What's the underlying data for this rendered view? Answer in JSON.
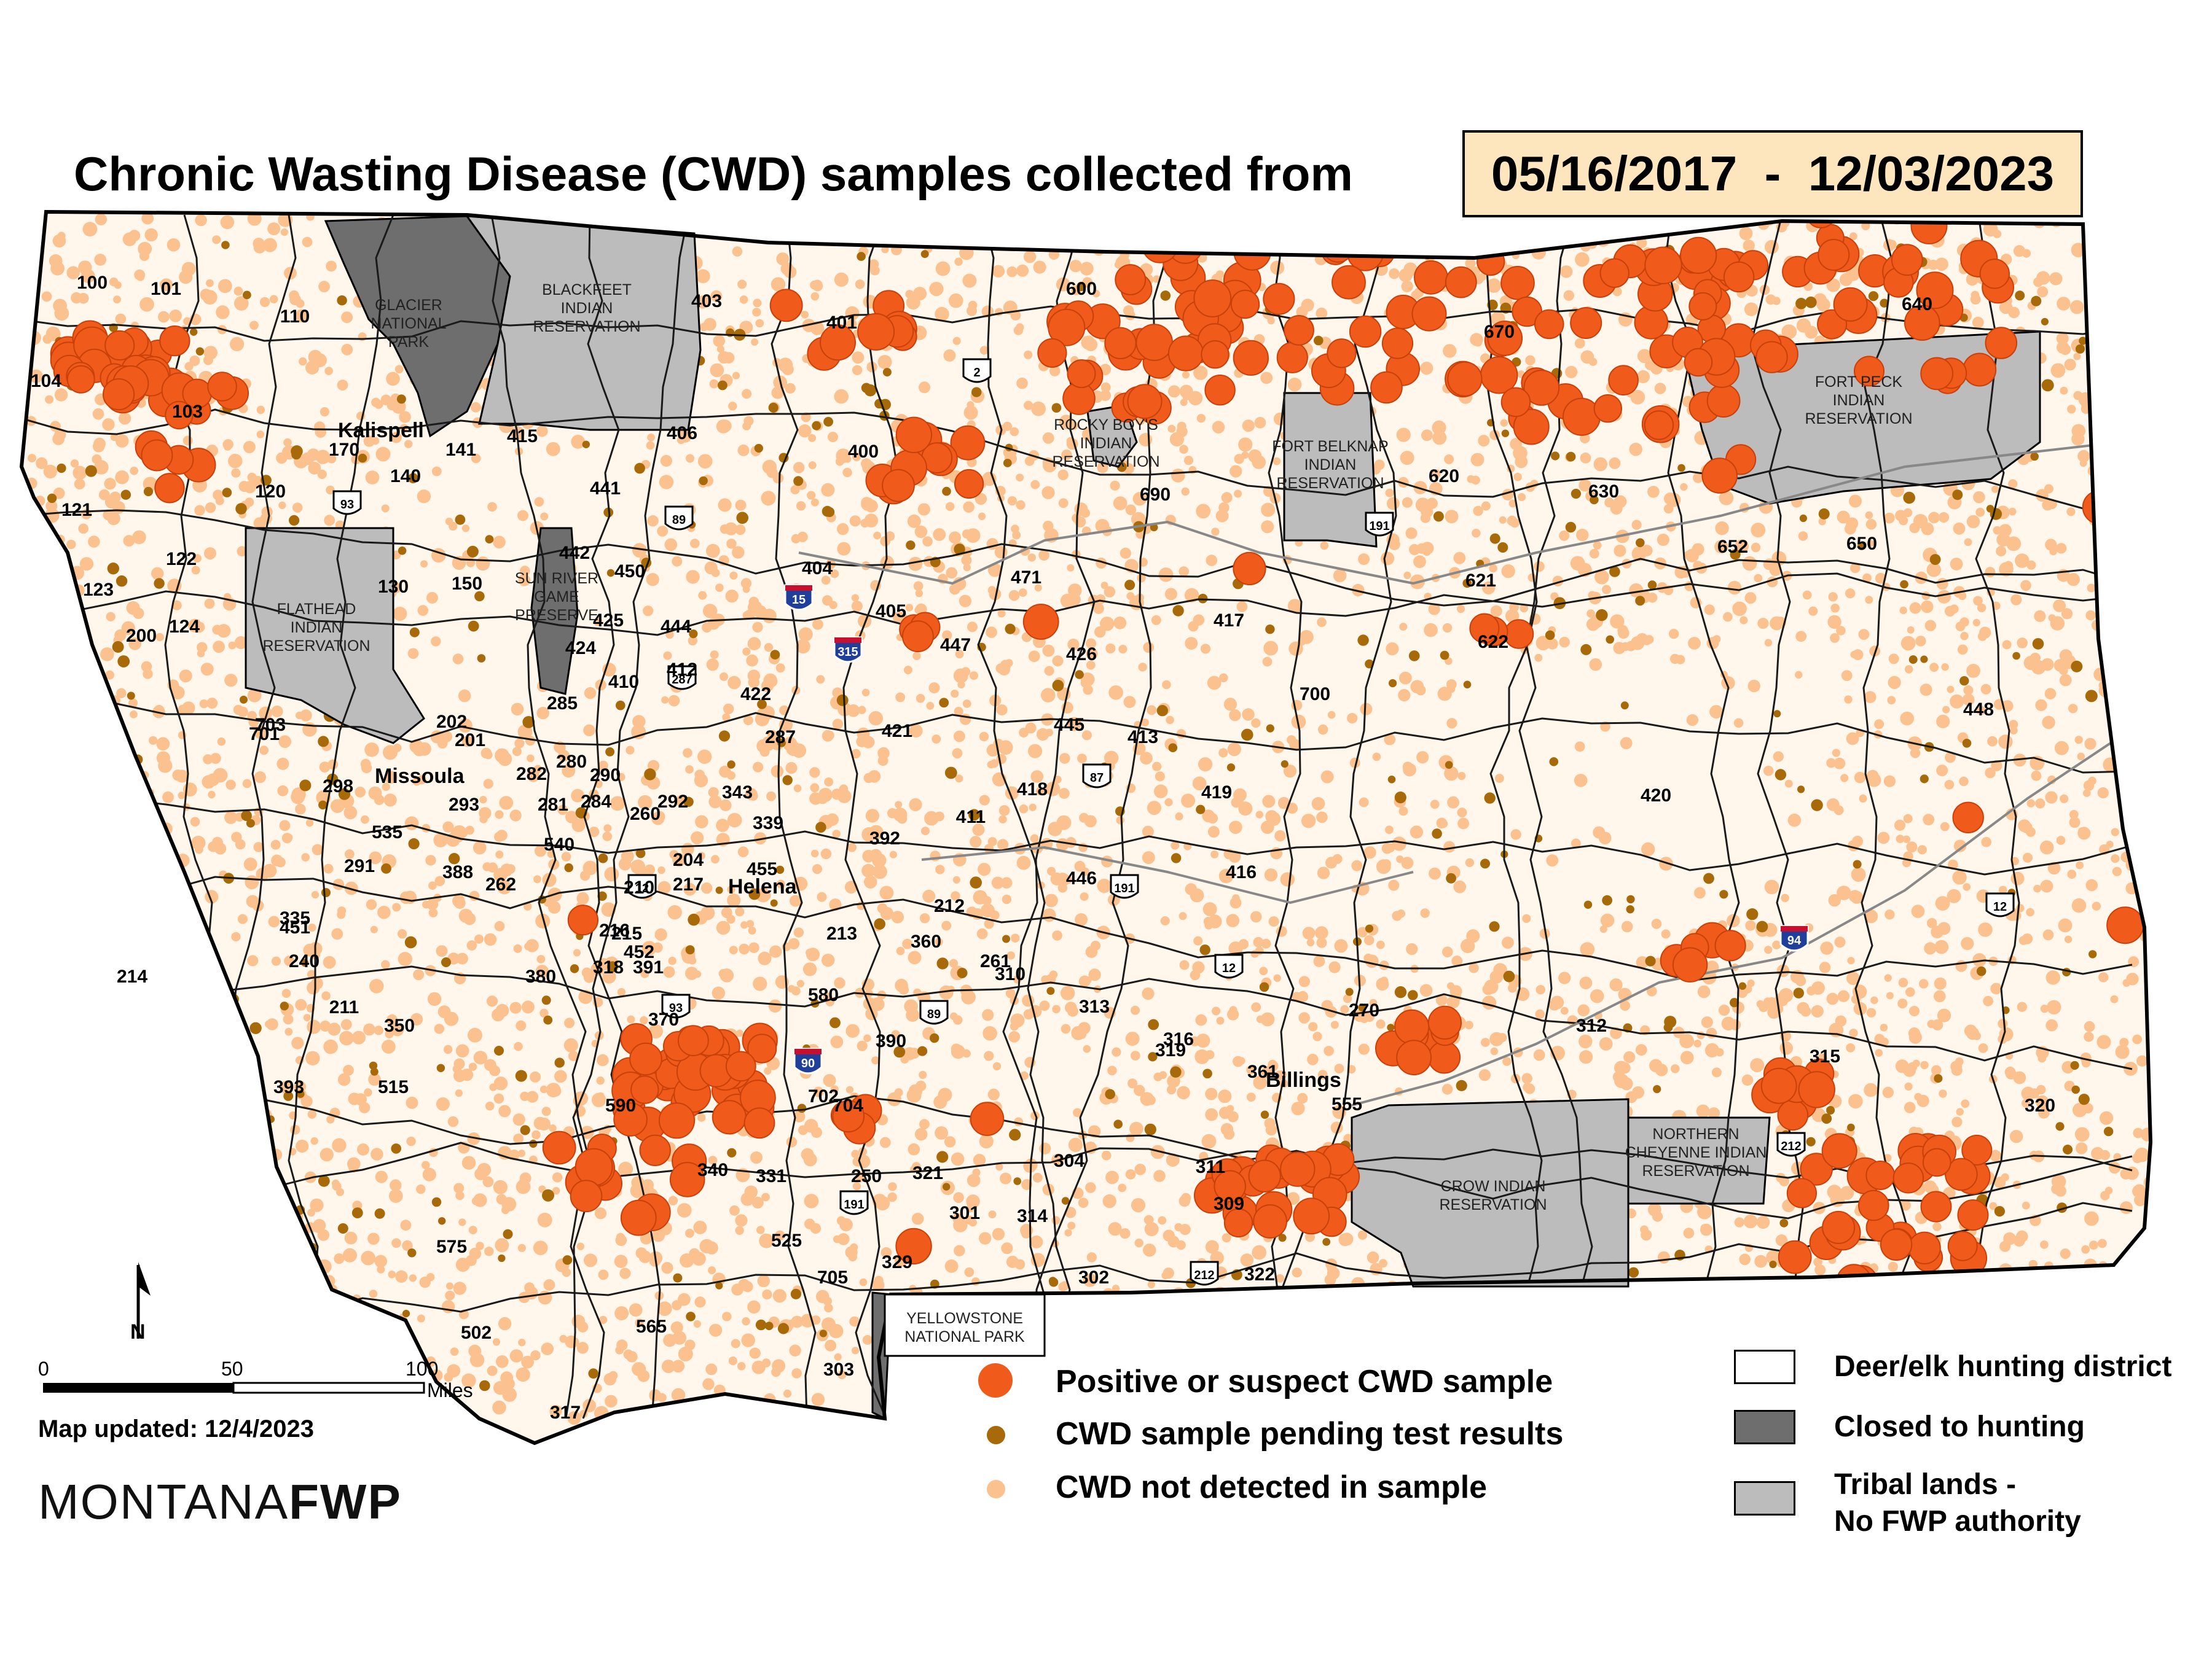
{
  "title": "Chronic Wasting Disease (CWD) samples collected from",
  "date_range": "05/16/2017  -  12/03/2023",
  "map_updated": "Map updated: 12/4/2023",
  "brand": {
    "prefix": "MONTANA",
    "suffix": "FWP"
  },
  "north_arrow": "N",
  "scale": {
    "ticks": [
      "0",
      "50",
      "100"
    ],
    "unit": "Miles"
  },
  "legend": {
    "positive": "Positive or suspect CWD sample",
    "pending": "CWD sample pending test results",
    "not_detected": "CWD not detected in sample",
    "district": "Deer/elk hunting district",
    "closed": "Closed to hunting",
    "tribal_line1": "Tribal lands -",
    "tribal_line2": "No FWP authority"
  },
  "colors": {
    "positive": "#f05a1a",
    "pending": "#a86a08",
    "not_detected": "#fbc290",
    "closed": "#6e6e6e",
    "tribal": "#bcbcbc",
    "state_outline": "#000000"
  },
  "cities": [
    {
      "name": "Kalispell"
    },
    {
      "name": "Missoula"
    },
    {
      "name": "Helena"
    },
    {
      "name": "Billings"
    }
  ],
  "areas": [
    {
      "lines": [
        "GLACIER",
        "NATIONAL",
        "PARK"
      ]
    },
    {
      "lines": [
        "BLACKFEET",
        "INDIAN",
        "RESERVATION"
      ]
    },
    {
      "lines": [
        "FLATHEAD",
        "INDIAN",
        "RESERVATION"
      ]
    },
    {
      "lines": [
        "SUN RIVER",
        "GAME",
        "PRESERVE"
      ]
    },
    {
      "lines": [
        "ROCKY BOY'S",
        "INDIAN",
        "RESERVATION"
      ]
    },
    {
      "lines": [
        "FORT BELKNAP",
        "INDIAN",
        "RESERVATION"
      ]
    },
    {
      "lines": [
        "FORT PECK",
        "INDIAN",
        "RESERVATION"
      ]
    },
    {
      "lines": [
        "CROW INDIAN",
        "RESERVATION"
      ]
    },
    {
      "lines": [
        "NORTHERN",
        "CHEYENNE INDIAN",
        "RESERVATION"
      ]
    },
    {
      "lines": [
        "YELLOWSTONE",
        "NATIONAL PARK"
      ]
    }
  ],
  "highways": [
    "2",
    "15",
    "315",
    "89",
    "93",
    "287",
    "87",
    "191",
    "12",
    "90",
    "94",
    "212"
  ],
  "districts": [
    "100",
    "101",
    "110",
    "104",
    "103",
    "170",
    "141",
    "415",
    "403",
    "401",
    "600",
    "670",
    "640",
    "406",
    "400",
    "690",
    "620",
    "630",
    "650",
    "652",
    "121",
    "120",
    "140",
    "441",
    "442",
    "450",
    "122",
    "150",
    "130",
    "123",
    "124",
    "200",
    "425",
    "424",
    "444",
    "404",
    "405",
    "471",
    "447",
    "417",
    "426",
    "622",
    "621",
    "700",
    "410",
    "412",
    "422",
    "287",
    "421",
    "445",
    "413",
    "419",
    "418",
    "411",
    "420",
    "448",
    "701",
    "703",
    "202",
    "201",
    "285",
    "282",
    "280",
    "290",
    "281",
    "284",
    "298",
    "293",
    "260",
    "292",
    "343",
    "339",
    "455",
    "392",
    "446",
    "416",
    "535",
    "540",
    "204",
    "291",
    "388",
    "262",
    "210",
    "217",
    "212",
    "215",
    "216",
    "213",
    "335",
    "318",
    "452",
    "391",
    "451",
    "240",
    "261",
    "211",
    "214",
    "380",
    "390",
    "580",
    "350",
    "370",
    "319",
    "270",
    "312",
    "315",
    "393",
    "515",
    "590",
    "702",
    "704",
    "250",
    "321",
    "331",
    "340",
    "311",
    "309",
    "301",
    "314",
    "304",
    "320",
    "575",
    "502",
    "317",
    "565",
    "525",
    "705",
    "329",
    "302",
    "303",
    "322",
    "360",
    "310",
    "313",
    "316",
    "361",
    "555"
  ]
}
